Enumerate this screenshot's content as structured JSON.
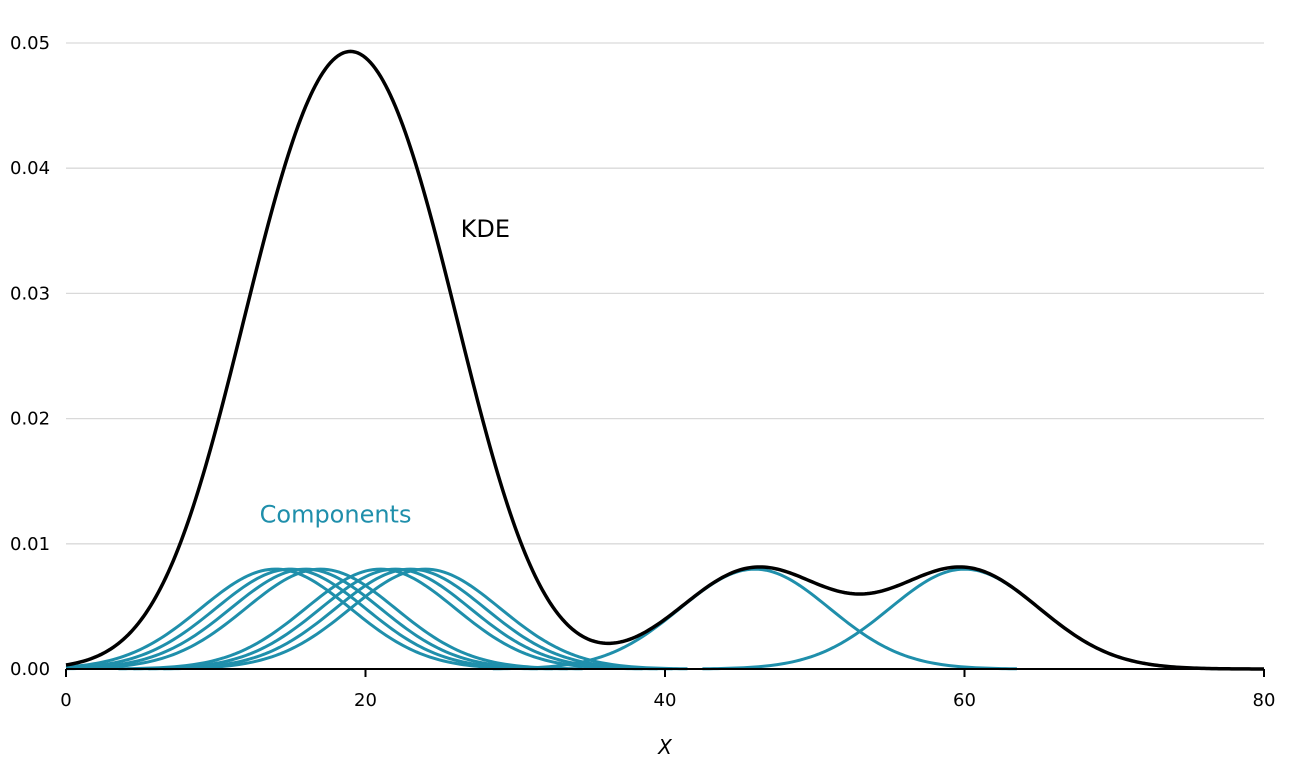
{
  "chart_data": {
    "type": "line",
    "xlabel": "X",
    "ylabel": "",
    "xlim": [
      0,
      80
    ],
    "ylim": [
      0,
      0.05
    ],
    "xticks": [
      "0",
      "20",
      "40",
      "60",
      "80"
    ],
    "yticks": [
      "0.00",
      "0.01",
      "0.02",
      "0.03",
      "0.04",
      "0.05"
    ],
    "grid": "horizontal",
    "colors": {
      "kde": "#000000",
      "components": "#1f8fab",
      "grid": "#d9d9d9",
      "axis": "#000000"
    },
    "kernel_sd": 5,
    "kernel_weight": 0.1,
    "component_centers": [
      14,
      15,
      16,
      17,
      21,
      22,
      23,
      24,
      46,
      60
    ],
    "series": [
      {
        "id": "kde",
        "kind": "sum of components"
      },
      {
        "id": "components",
        "kind": "gaussian kernels"
      }
    ],
    "annotations": [
      {
        "text": "KDE",
        "x": 28,
        "y": 0.0345,
        "color": "#000000"
      },
      {
        "text": "Components",
        "x": 18,
        "y": 0.0117,
        "color": "#1f8fab"
      }
    ]
  }
}
